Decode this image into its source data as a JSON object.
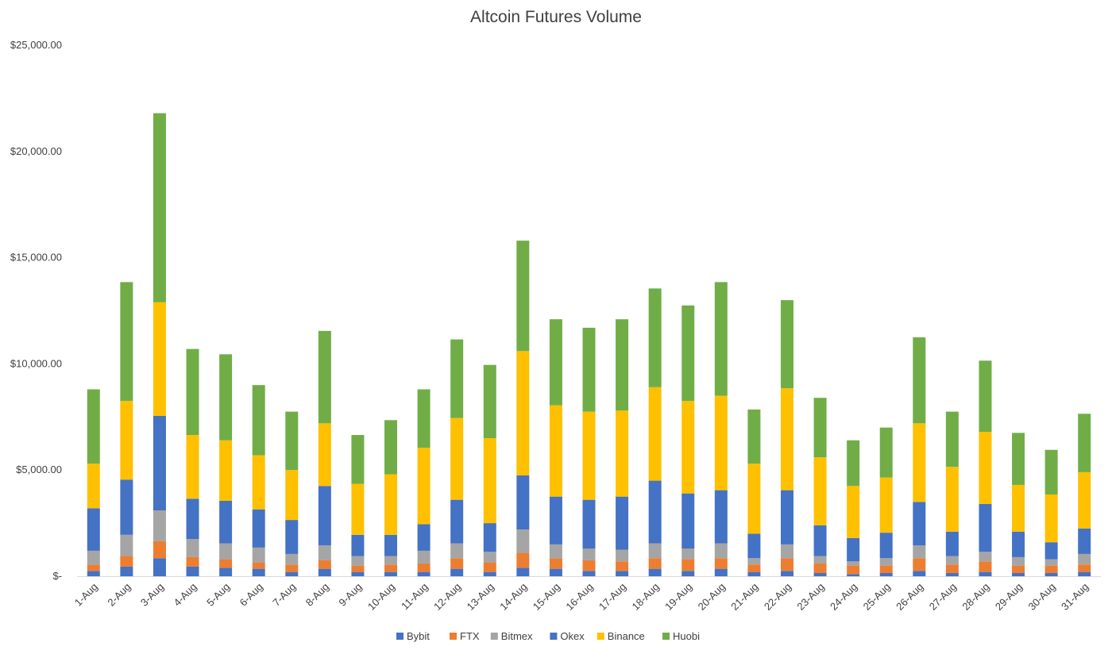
{
  "chart_data": {
    "type": "bar",
    "stacked": true,
    "title": "Altcoin Futures Volume",
    "xlabel": "",
    "ylabel": "",
    "ylim": [
      0,
      25000
    ],
    "yticks": [
      0,
      5000,
      10000,
      15000,
      20000,
      25000
    ],
    "ytick_labels": [
      "$-",
      "$5,000.00",
      "$10,000.00",
      "$15,000.00",
      "$20,000.00",
      "$25,000.00"
    ],
    "grid": false,
    "legend_position": "bottom",
    "categories": [
      "1-Aug",
      "2-Aug",
      "3-Aug",
      "4-Aug",
      "5-Aug",
      "6-Aug",
      "7-Aug",
      "8-Aug",
      "9-Aug",
      "10-Aug",
      "11-Aug",
      "12-Aug",
      "13-Aug",
      "14-Aug",
      "15-Aug",
      "16-Aug",
      "17-Aug",
      "18-Aug",
      "19-Aug",
      "20-Aug",
      "21-Aug",
      "22-Aug",
      "23-Aug",
      "24-Aug",
      "25-Aug",
      "26-Aug",
      "27-Aug",
      "28-Aug",
      "29-Aug",
      "30-Aug",
      "31-Aug"
    ],
    "series": [
      {
        "name": "Bybit",
        "color": "#4472C4",
        "values": [
          250,
          450,
          850,
          450,
          400,
          350,
          200,
          350,
          200,
          200,
          200,
          350,
          200,
          400,
          350,
          250,
          250,
          350,
          250,
          350,
          200,
          250,
          150,
          100,
          150,
          250,
          150,
          200,
          150,
          150,
          200
        ]
      },
      {
        "name": "FTX",
        "color": "#ED7D31",
        "values": [
          300,
          500,
          800,
          450,
          400,
          300,
          350,
          400,
          300,
          350,
          400,
          500,
          450,
          700,
          500,
          500,
          450,
          500,
          550,
          500,
          350,
          600,
          450,
          400,
          350,
          600,
          400,
          500,
          350,
          350,
          350
        ]
      },
      {
        "name": "Bitmex",
        "color": "#A5A5A5",
        "values": [
          650,
          1000,
          1450,
          850,
          750,
          700,
          500,
          700,
          450,
          400,
          600,
          700,
          500,
          1100,
          650,
          550,
          550,
          700,
          500,
          700,
          300,
          650,
          350,
          200,
          350,
          600,
          400,
          450,
          400,
          300,
          500
        ]
      },
      {
        "name": "Okex",
        "color": "#4472C4",
        "values": [
          2000,
          2600,
          4450,
          1900,
          2000,
          1800,
          1600,
          2800,
          1000,
          1000,
          1250,
          2050,
          1350,
          2550,
          2250,
          2300,
          2500,
          2950,
          2600,
          2500,
          1150,
          2550,
          1450,
          1100,
          1200,
          2050,
          1150,
          2250,
          1200,
          800,
          1200
        ]
      },
      {
        "name": "Binance",
        "color": "#FFC000",
        "values": [
          2100,
          3700,
          5350,
          3000,
          2850,
          2550,
          2350,
          2950,
          2400,
          2850,
          3600,
          3850,
          4000,
          5850,
          4300,
          4150,
          4050,
          4400,
          4350,
          4450,
          3300,
          4800,
          3200,
          2450,
          2600,
          3700,
          3050,
          3400,
          2200,
          2250,
          2650
        ]
      },
      {
        "name": "Huobi",
        "color": "#70AD47",
        "values": [
          3500,
          5600,
          8900,
          4050,
          4050,
          3300,
          2750,
          4350,
          2300,
          2550,
          2750,
          3700,
          3450,
          5200,
          4050,
          3950,
          4300,
          4650,
          4500,
          5350,
          2550,
          4150,
          2800,
          2150,
          2350,
          4050,
          2600,
          3350,
          2450,
          2100,
          2750
        ]
      }
    ]
  }
}
